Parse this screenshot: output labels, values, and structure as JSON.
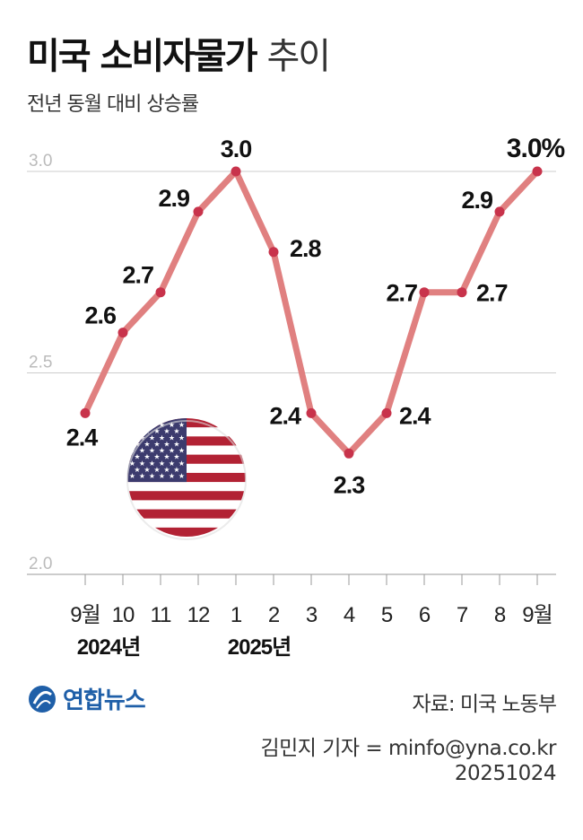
{
  "title_main": "미국 소비자물가",
  "title_light": "추이",
  "subtitle": "전년 동월 대비 상승률",
  "source": "자료: 미국 노동부",
  "byline": "김민지 기자 = minfo@yna.co.kr",
  "date_code": "20251024",
  "logo_text": "연합뉴스",
  "colors": {
    "line": "#e08080",
    "point": "#c8334b",
    "grid": "#cccccc",
    "flag_red": "#b22234",
    "flag_blue": "#3c3b6e"
  },
  "chart_data": {
    "type": "line",
    "categories": [
      "9월",
      "10",
      "11",
      "12",
      "1",
      "2",
      "3",
      "4",
      "5",
      "6",
      "7",
      "8",
      "9월"
    ],
    "year_labels": [
      {
        "index": 0,
        "label": "2024년"
      },
      {
        "index": 4,
        "label": "2025년"
      }
    ],
    "values": [
      2.4,
      2.6,
      2.7,
      2.9,
      3.0,
      2.8,
      2.4,
      2.3,
      2.4,
      2.7,
      2.7,
      2.9,
      3.0
    ],
    "data_labels": [
      "2.4",
      "2.6",
      "2.7",
      "2.9",
      "3.0",
      "2.8",
      "2.4",
      "2.3",
      "2.4",
      "2.7",
      "2.7",
      "2.9",
      "3.0%"
    ],
    "yticks": [
      "2.0",
      "2.5",
      "3.0"
    ],
    "ylim": [
      2.0,
      3.0
    ],
    "grid": true
  }
}
